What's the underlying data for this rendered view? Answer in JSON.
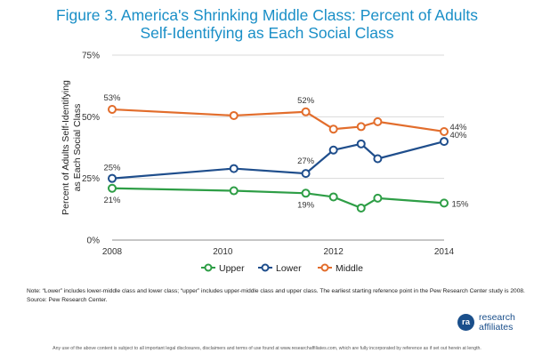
{
  "figure": {
    "title_line1": "Figure 3. America's Shrinking Middle Class: Percent of Adults",
    "title_line2": "Self-Identifying as Each Social Class"
  },
  "chart_data": {
    "type": "line",
    "ylabel_line1": "Percent of Adults Self-Identifying",
    "ylabel_line2": "as Each Social Class",
    "xlabel": "",
    "x_ticks": [
      2008,
      2010,
      2012,
      2014
    ],
    "y_ticks": [
      {
        "value": 0,
        "label": "0%"
      },
      {
        "value": 25,
        "label": "25%"
      },
      {
        "value": 50,
        "label": "50%"
      },
      {
        "value": 75,
        "label": "75%"
      }
    ],
    "xlim": [
      2008,
      2014
    ],
    "ylim": [
      0,
      75
    ],
    "grid": true,
    "legend_position": "bottom",
    "series": [
      {
        "name": "Upper",
        "color": "#2e9e46",
        "points": [
          {
            "x": 2008.0,
            "y": 21,
            "label": "21%"
          },
          {
            "x": 2010.2,
            "y": 20
          },
          {
            "x": 2011.5,
            "y": 19,
            "label": "19%"
          },
          {
            "x": 2012.0,
            "y": 17.5
          },
          {
            "x": 2012.5,
            "y": 13
          },
          {
            "x": 2012.8,
            "y": 17
          },
          {
            "x": 2014.0,
            "y": 15,
            "label": "15%"
          }
        ]
      },
      {
        "name": "Lower",
        "color": "#1f4e8c",
        "points": [
          {
            "x": 2008.0,
            "y": 25,
            "label": "25%"
          },
          {
            "x": 2010.2,
            "y": 29
          },
          {
            "x": 2011.5,
            "y": 27,
            "label": "27%"
          },
          {
            "x": 2012.0,
            "y": 36.5
          },
          {
            "x": 2012.5,
            "y": 39
          },
          {
            "x": 2012.8,
            "y": 33
          },
          {
            "x": 2014.0,
            "y": 40,
            "label": "40%"
          }
        ]
      },
      {
        "name": "Middle",
        "color": "#e26d2c",
        "points": [
          {
            "x": 2008.0,
            "y": 53,
            "label": "53%"
          },
          {
            "x": 2010.2,
            "y": 50.5
          },
          {
            "x": 2011.5,
            "y": 52,
            "label": "52%"
          },
          {
            "x": 2012.0,
            "y": 45
          },
          {
            "x": 2012.5,
            "y": 46
          },
          {
            "x": 2012.8,
            "y": 48
          },
          {
            "x": 2014.0,
            "y": 44,
            "label": "44%"
          }
        ]
      }
    ]
  },
  "notes": {
    "note": "Note: “Lower” includes lower-middle class and lower class; “upper” includes upper-middle class and upper class. The earliest starting reference point in the Pew Research Center study is 2008.",
    "source": "Source: Pew Research Center."
  },
  "logo": {
    "mark": "ra",
    "line1": "research",
    "line2": "affiliates"
  },
  "disclaimer": "Any use of the above content is subject to all important legal disclosures, disclaimers and terms of use found at www.researchaffiliates.com, which are fully incorporated by reference as if set out herein at length."
}
